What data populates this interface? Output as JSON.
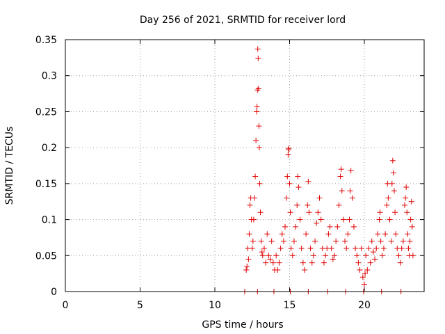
{
  "chart_data": {
    "type": "scatter",
    "title": "Day 256 of 2021, SRMTID for receiver lord",
    "xlabel": "GPS time / hours",
    "ylabel": "SRMTID / TECUs",
    "xlim": [
      0,
      24
    ],
    "ylim": [
      0,
      0.35
    ],
    "xticks": [
      0,
      5,
      10,
      15,
      20
    ],
    "yticks": [
      0,
      0.05,
      0.1,
      0.15,
      0.2,
      0.25,
      0.3,
      0.35
    ],
    "xtick_labels": [
      "0",
      "5",
      "10",
      "15",
      "20"
    ],
    "ytick_labels": [
      "0",
      "0.05",
      "0.1",
      "0.15",
      "0.2",
      "0.25",
      "0.3",
      "0.35"
    ],
    "grid": true,
    "marker": "+",
    "color": "#e00000",
    "series": [
      {
        "points": [
          [
            12.0,
            0.0
          ],
          [
            12.85,
            0.0
          ],
          [
            13.95,
            0.0
          ],
          [
            15.05,
            0.0
          ],
          [
            16.25,
            0.0
          ],
          [
            17.55,
            0.0
          ],
          [
            18.75,
            0.0
          ],
          [
            19.95,
            0.0
          ],
          [
            21.15,
            0.0
          ],
          [
            22.45,
            0.0
          ],
          [
            12.1,
            0.03
          ],
          [
            12.15,
            0.035
          ],
          [
            12.2,
            0.06
          ],
          [
            12.25,
            0.045
          ],
          [
            12.3,
            0.08
          ],
          [
            12.35,
            0.12
          ],
          [
            12.4,
            0.13
          ],
          [
            12.45,
            0.1
          ],
          [
            12.5,
            0.06
          ],
          [
            12.55,
            0.07
          ],
          [
            12.6,
            0.1
          ],
          [
            12.65,
            0.13
          ],
          [
            12.7,
            0.16
          ],
          [
            12.75,
            0.21
          ],
          [
            12.8,
            0.25
          ],
          [
            12.82,
            0.257
          ],
          [
            12.85,
            0.28
          ],
          [
            12.87,
            0.337
          ],
          [
            12.9,
            0.324
          ],
          [
            12.92,
            0.282
          ],
          [
            12.95,
            0.23
          ],
          [
            12.97,
            0.2
          ],
          [
            13.0,
            0.15
          ],
          [
            13.05,
            0.11
          ],
          [
            13.1,
            0.07
          ],
          [
            13.15,
            0.055
          ],
          [
            13.2,
            0.05
          ],
          [
            13.3,
            0.06
          ],
          [
            13.4,
            0.04
          ],
          [
            13.5,
            0.08
          ],
          [
            13.6,
            0.05
          ],
          [
            13.7,
            0.045
          ],
          [
            13.8,
            0.07
          ],
          [
            13.9,
            0.04
          ],
          [
            14.0,
            0.03
          ],
          [
            14.1,
            0.05
          ],
          [
            14.2,
            0.03
          ],
          [
            14.3,
            0.04
          ],
          [
            14.4,
            0.06
          ],
          [
            14.5,
            0.08
          ],
          [
            14.6,
            0.07
          ],
          [
            14.7,
            0.09
          ],
          [
            14.8,
            0.13
          ],
          [
            14.85,
            0.16
          ],
          [
            14.9,
            0.19
          ],
          [
            14.93,
            0.197
          ],
          [
            14.95,
            0.199
          ],
          [
            15.0,
            0.15
          ],
          [
            15.05,
            0.11
          ],
          [
            15.1,
            0.06
          ],
          [
            15.2,
            0.05
          ],
          [
            15.3,
            0.07
          ],
          [
            15.4,
            0.09
          ],
          [
            15.5,
            0.12
          ],
          [
            15.55,
            0.16
          ],
          [
            15.6,
            0.145
          ],
          [
            15.7,
            0.1
          ],
          [
            15.8,
            0.06
          ],
          [
            15.9,
            0.04
          ],
          [
            16.0,
            0.03
          ],
          [
            16.1,
            0.08
          ],
          [
            16.2,
            0.12
          ],
          [
            16.25,
            0.153
          ],
          [
            16.3,
            0.11
          ],
          [
            16.4,
            0.06
          ],
          [
            16.5,
            0.04
          ],
          [
            16.6,
            0.05
          ],
          [
            16.7,
            0.07
          ],
          [
            16.8,
            0.095
          ],
          [
            16.9,
            0.11
          ],
          [
            17.0,
            0.13
          ],
          [
            17.1,
            0.1
          ],
          [
            17.2,
            0.06
          ],
          [
            17.3,
            0.04
          ],
          [
            17.4,
            0.05
          ],
          [
            17.5,
            0.06
          ],
          [
            17.6,
            0.08
          ],
          [
            17.7,
            0.09
          ],
          [
            17.8,
            0.06
          ],
          [
            17.9,
            0.045
          ],
          [
            18.0,
            0.05
          ],
          [
            18.1,
            0.07
          ],
          [
            18.2,
            0.09
          ],
          [
            18.3,
            0.12
          ],
          [
            18.4,
            0.16
          ],
          [
            18.45,
            0.17
          ],
          [
            18.5,
            0.14
          ],
          [
            18.6,
            0.1
          ],
          [
            18.7,
            0.07
          ],
          [
            18.8,
            0.06
          ],
          [
            18.9,
            0.08
          ],
          [
            19.0,
            0.1
          ],
          [
            19.05,
            0.14
          ],
          [
            19.1,
            0.168
          ],
          [
            19.2,
            0.13
          ],
          [
            19.3,
            0.09
          ],
          [
            19.4,
            0.06
          ],
          [
            19.5,
            0.05
          ],
          [
            19.6,
            0.04
          ],
          [
            19.7,
            0.03
          ],
          [
            19.8,
            0.06
          ],
          [
            19.9,
            0.02
          ],
          [
            20.0,
            0.01
          ],
          [
            20.05,
            0.025
          ],
          [
            20.1,
            0.05
          ],
          [
            20.2,
            0.03
          ],
          [
            20.3,
            0.06
          ],
          [
            20.4,
            0.04
          ],
          [
            20.5,
            0.07
          ],
          [
            20.6,
            0.055
          ],
          [
            20.7,
            0.045
          ],
          [
            20.8,
            0.06
          ],
          [
            20.9,
            0.08
          ],
          [
            21.0,
            0.1
          ],
          [
            21.05,
            0.11
          ],
          [
            21.1,
            0.07
          ],
          [
            21.2,
            0.05
          ],
          [
            21.3,
            0.06
          ],
          [
            21.4,
            0.08
          ],
          [
            21.5,
            0.12
          ],
          [
            21.55,
            0.15
          ],
          [
            21.6,
            0.13
          ],
          [
            21.7,
            0.1
          ],
          [
            21.8,
            0.07
          ],
          [
            21.85,
            0.15
          ],
          [
            21.9,
            0.182
          ],
          [
            21.95,
            0.165
          ],
          [
            22.0,
            0.14
          ],
          [
            22.05,
            0.11
          ],
          [
            22.1,
            0.08
          ],
          [
            22.2,
            0.06
          ],
          [
            22.3,
            0.05
          ],
          [
            22.4,
            0.04
          ],
          [
            22.5,
            0.06
          ],
          [
            22.6,
            0.07
          ],
          [
            22.7,
            0.12
          ],
          [
            22.75,
            0.13
          ],
          [
            22.8,
            0.145
          ],
          [
            22.85,
            0.11
          ],
          [
            22.9,
            0.08
          ],
          [
            22.95,
            0.06
          ],
          [
            23.0,
            0.05
          ],
          [
            23.05,
            0.07
          ],
          [
            23.1,
            0.1
          ],
          [
            23.15,
            0.125
          ],
          [
            23.2,
            0.09
          ],
          [
            23.25,
            0.05
          ]
        ]
      }
    ]
  }
}
